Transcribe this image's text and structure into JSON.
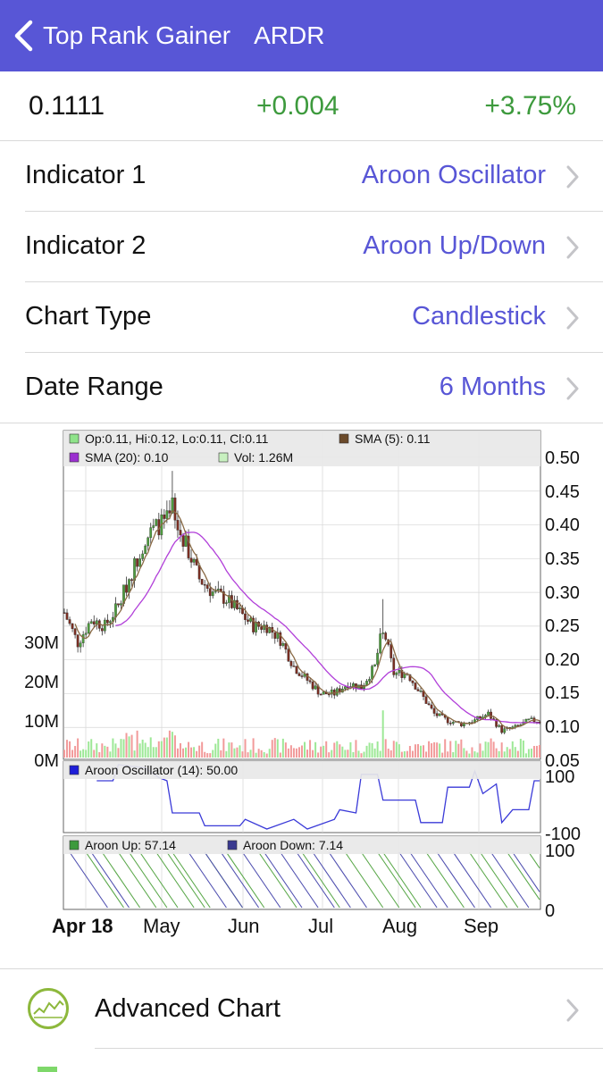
{
  "nav": {
    "back_label": "Top Rank Gainer",
    "title": "ARDR"
  },
  "quote": {
    "price": "0.1111",
    "change": "+0.004",
    "change_pct": "+3.75%"
  },
  "settings": [
    {
      "label": "Indicator 1",
      "value": "Aroon Oscillator"
    },
    {
      "label": "Indicator 2",
      "value": "Aroon Up/Down"
    },
    {
      "label": "Chart Type",
      "value": "Candlestick"
    },
    {
      "label": "Date Range",
      "value": "6 Months"
    }
  ],
  "colors": {
    "accent": "#5856d6",
    "positive": "#3d9a3d",
    "candle_up": "#5aa84a",
    "candle_down": "#8b3a2c",
    "sma5": "#6b4a2a",
    "sma20": "#b13fd9",
    "vol_up": "#8fe38a",
    "vol_down": "#f08080",
    "aroon_osc": "#3a3ad8",
    "aroon_up": "#3d9a3d",
    "aroon_down": "#4040a0"
  },
  "chart_data": {
    "type": "candlestick",
    "price_axis": {
      "ticks": [
        "0.50",
        "0.45",
        "0.40",
        "0.35",
        "0.30",
        "0.25",
        "0.20",
        "0.15",
        "0.10",
        "0.05"
      ],
      "ylim": [
        0.05,
        0.5
      ]
    },
    "volume_axis": {
      "ticks": [
        "30M",
        "20M",
        "10M",
        "0M"
      ],
      "ylim": [
        0,
        40
      ]
    },
    "x_ticks": [
      "Apr 18",
      "May",
      "Jun",
      "Jul",
      "Aug",
      "Sep"
    ],
    "main_legend": [
      {
        "text": "Op:0.11, Hi:0.12, Lo:0.11, Cl:0.11",
        "swatch": "#8fe38a"
      },
      {
        "text": "SMA (5): 0.11",
        "swatch": "#6b4a2a"
      },
      {
        "text": "SMA (20): 0.10",
        "swatch": "#9b30d0"
      },
      {
        "text": "Vol: 1.26M",
        "swatch": "#c8f0c0"
      }
    ],
    "price_series": [
      {
        "x": 0,
        "close": 0.27
      },
      {
        "x": 5,
        "close": 0.225
      },
      {
        "x": 10,
        "close": 0.26
      },
      {
        "x": 15,
        "close": 0.25
      },
      {
        "x": 20,
        "close": 0.28
      },
      {
        "x": 25,
        "close": 0.33
      },
      {
        "x": 30,
        "close": 0.38
      },
      {
        "x": 35,
        "close": 0.4
      },
      {
        "x": 40,
        "close": 0.41
      },
      {
        "x": 45,
        "close": 0.37
      },
      {
        "x": 50,
        "close": 0.32
      },
      {
        "x": 55,
        "close": 0.3
      },
      {
        "x": 60,
        "close": 0.29
      },
      {
        "x": 65,
        "close": 0.27
      },
      {
        "x": 70,
        "close": 0.25
      },
      {
        "x": 75,
        "close": 0.25
      },
      {
        "x": 80,
        "close": 0.23
      },
      {
        "x": 85,
        "close": 0.19
      },
      {
        "x": 90,
        "close": 0.17
      },
      {
        "x": 95,
        "close": 0.15
      },
      {
        "x": 100,
        "close": 0.15
      },
      {
        "x": 105,
        "close": 0.165
      },
      {
        "x": 110,
        "close": 0.16
      },
      {
        "x": 115,
        "close": 0.19
      },
      {
        "x": 118,
        "close": 0.25
      },
      {
        "x": 122,
        "close": 0.18
      },
      {
        "x": 127,
        "close": 0.18
      },
      {
        "x": 132,
        "close": 0.15
      },
      {
        "x": 137,
        "close": 0.12
      },
      {
        "x": 142,
        "close": 0.11
      },
      {
        "x": 147,
        "close": 0.105
      },
      {
        "x": 152,
        "close": 0.11
      },
      {
        "x": 157,
        "close": 0.12
      },
      {
        "x": 162,
        "close": 0.095
      },
      {
        "x": 167,
        "close": 0.1
      },
      {
        "x": 172,
        "close": 0.11
      },
      {
        "x": 176,
        "close": 0.11
      }
    ],
    "indicator1": {
      "legend": "Aroon Oscillator (14): 50.00",
      "ticks": [
        "100",
        "-100"
      ],
      "ylim": [
        -100,
        100
      ],
      "values": [
        {
          "x": 12,
          "y": 50
        },
        {
          "x": 18,
          "y": 50
        },
        {
          "x": 20,
          "y": 100
        },
        {
          "x": 30,
          "y": 90
        },
        {
          "x": 35,
          "y": 60
        },
        {
          "x": 38,
          "y": 50
        },
        {
          "x": 40,
          "y": -50
        },
        {
          "x": 50,
          "y": -50
        },
        {
          "x": 52,
          "y": -90
        },
        {
          "x": 65,
          "y": -90
        },
        {
          "x": 67,
          "y": -70
        },
        {
          "x": 75,
          "y": -100
        },
        {
          "x": 85,
          "y": -70
        },
        {
          "x": 90,
          "y": -100
        },
        {
          "x": 100,
          "y": -70
        },
        {
          "x": 102,
          "y": -40
        },
        {
          "x": 108,
          "y": -50
        },
        {
          "x": 110,
          "y": 70
        },
        {
          "x": 116,
          "y": 70
        },
        {
          "x": 118,
          "y": -10
        },
        {
          "x": 130,
          "y": -10
        },
        {
          "x": 132,
          "y": -80
        },
        {
          "x": 140,
          "y": -80
        },
        {
          "x": 142,
          "y": 30
        },
        {
          "x": 150,
          "y": 30
        },
        {
          "x": 152,
          "y": 80
        },
        {
          "x": 155,
          "y": 10
        },
        {
          "x": 160,
          "y": 40
        },
        {
          "x": 162,
          "y": -80
        },
        {
          "x": 166,
          "y": -40
        },
        {
          "x": 172,
          "y": -40
        },
        {
          "x": 174,
          "y": 50
        },
        {
          "x": 176,
          "y": 50
        }
      ]
    },
    "indicator2": {
      "legend_up": "Aroon Up: 57.14",
      "legend_down": "Aroon Down: 7.14",
      "ticks": [
        "100",
        "0"
      ],
      "ylim": [
        0,
        100
      ]
    }
  },
  "bottom": {
    "label": "Advanced Chart"
  }
}
